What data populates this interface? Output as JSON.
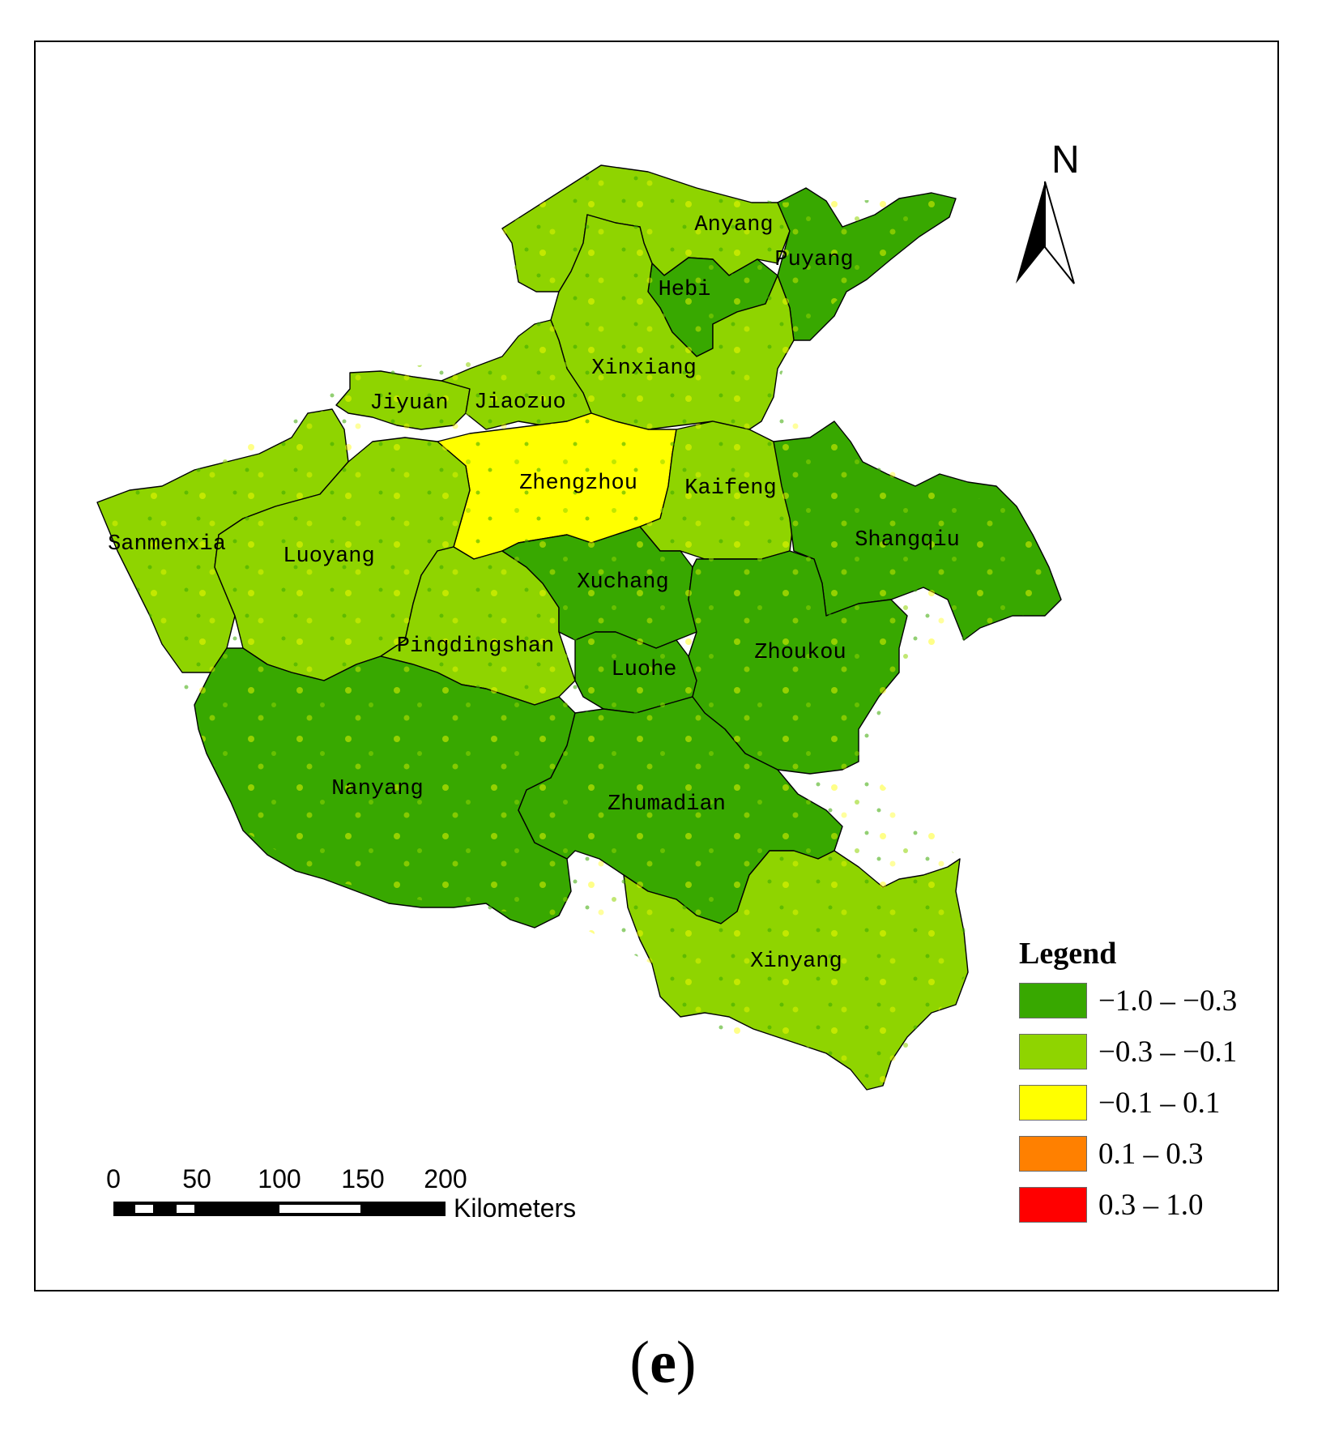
{
  "map": {
    "north_label": "N",
    "cities": [
      {
        "id": "anyang",
        "name": "Anyang"
      },
      {
        "id": "puyang",
        "name": "Puyang"
      },
      {
        "id": "hebi",
        "name": "Hebi"
      },
      {
        "id": "xinxiang",
        "name": "Xinxiang"
      },
      {
        "id": "jiyuan",
        "name": "Jiyuan"
      },
      {
        "id": "jiaozuo",
        "name": "Jiaozuo"
      },
      {
        "id": "zhengzhou",
        "name": "Zhengzhou"
      },
      {
        "id": "kaifeng",
        "name": "Kaifeng"
      },
      {
        "id": "shangqiu",
        "name": "Shangqiu"
      },
      {
        "id": "sanmenxia",
        "name": "Sanmenxia"
      },
      {
        "id": "luoyang",
        "name": "Luoyang"
      },
      {
        "id": "xuchang",
        "name": "Xuchang"
      },
      {
        "id": "pingdingshan",
        "name": "Pingdingshan"
      },
      {
        "id": "luohe",
        "name": "Luohe"
      },
      {
        "id": "zhoukou",
        "name": "Zhoukou"
      },
      {
        "id": "nanyang",
        "name": "Nanyang"
      },
      {
        "id": "zhumadian",
        "name": "Zhumadian"
      },
      {
        "id": "xinyang",
        "name": "Xinyang"
      }
    ]
  },
  "legend": {
    "title": "Legend",
    "items": [
      {
        "label": "−1.0 – −0.3",
        "color": "#38a800"
      },
      {
        "label": "−0.3 – −0.1",
        "color": "#8fd400"
      },
      {
        "label": "−0.1 – 0.1",
        "color": "#ffff00"
      },
      {
        "label": "0.1 – 0.3",
        "color": "#ff8000"
      },
      {
        "label": "0.3 – 1.0",
        "color": "#ff0000"
      }
    ]
  },
  "scale_bar": {
    "ticks": [
      "0",
      "50",
      "100",
      "150",
      "200"
    ],
    "unit": "Kilometers"
  },
  "panel": {
    "open": "(",
    "letter": "e",
    "close": ")"
  }
}
